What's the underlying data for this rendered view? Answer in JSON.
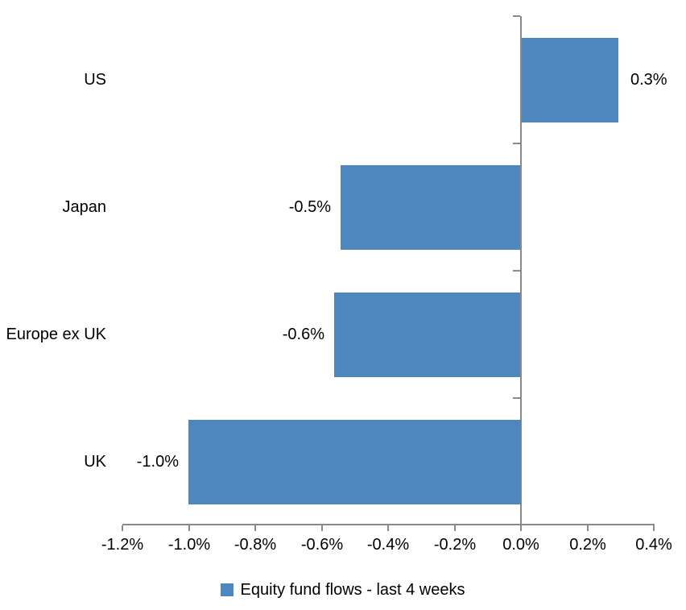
{
  "chart_data": {
    "type": "bar",
    "orientation": "horizontal",
    "categories": [
      "US",
      "Japan",
      "Europe ex UK",
      "UK"
    ],
    "series": [
      {
        "name": "Equity fund flows - last 4 weeks",
        "values": [
          0.29,
          -0.54,
          -0.56,
          -1.0
        ],
        "data_labels": [
          "0.3%",
          "-0.5%",
          "-0.6%",
          "-1.0%"
        ],
        "color": "#4e86be"
      }
    ],
    "xlim": [
      -1.2,
      0.4
    ],
    "x_tick_labels": [
      "-1.2%",
      "-1.0%",
      "-0.8%",
      "-0.6%",
      "-0.4%",
      "-0.2%",
      "0.0%",
      "0.2%",
      "0.4%"
    ],
    "grid": false,
    "legend_position": "bottom",
    "axis_color": "#898989",
    "text_color": "#000000"
  }
}
